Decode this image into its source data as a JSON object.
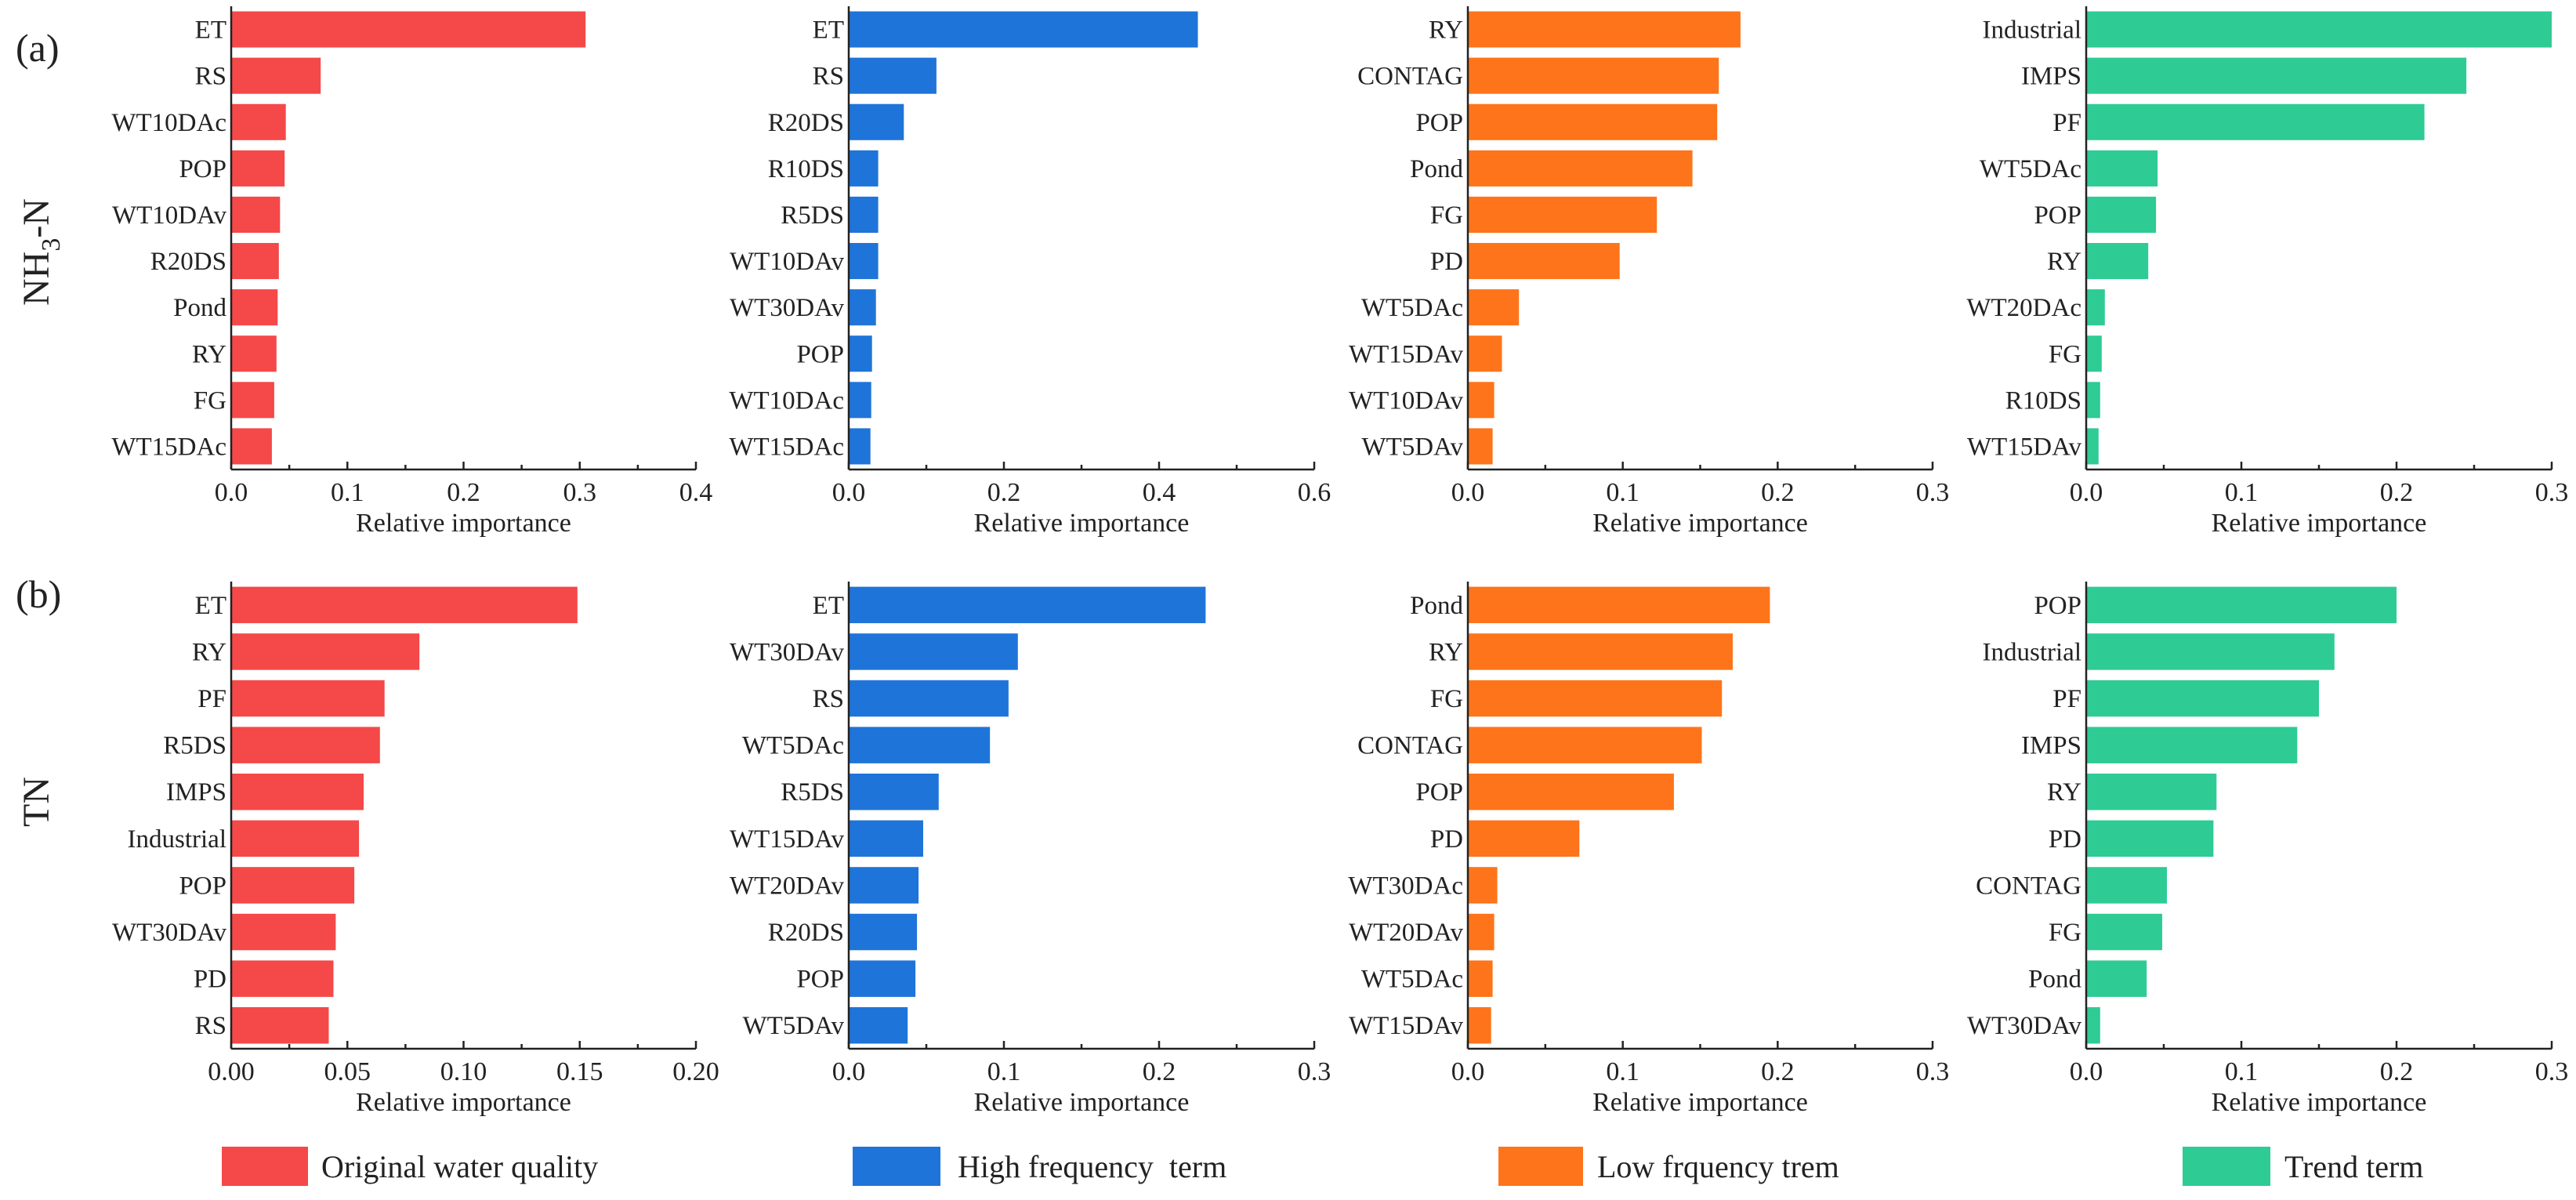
{
  "row_labels": [
    {
      "tag": "(a)",
      "label": "NH",
      "label_sub": "3",
      "label_tail": "-N"
    },
    {
      "tag": "(b)",
      "label": "TN",
      "label_sub": "",
      "label_tail": ""
    }
  ],
  "colors": {
    "original": "#f54848",
    "high": "#1f74d9",
    "low": "#fe741a",
    "trend": "#2fcb95"
  },
  "legend": [
    {
      "key": "original",
      "label": "Original water quality"
    },
    {
      "key": "high",
      "label": "High frequency  term"
    },
    {
      "key": "low",
      "label": "Low frquency trem"
    },
    {
      "key": "trend",
      "label": "Trend term"
    }
  ],
  "chart_data": [
    {
      "type": "bar",
      "orientation": "horizontal",
      "row": 0,
      "col": 0,
      "color_key": "original",
      "categories": [
        "ET",
        "RS",
        "WT10DAc",
        "POP",
        "WT10DAv",
        "R20DS",
        "Pond",
        "RY",
        "FG",
        "WT15DAc"
      ],
      "values": [
        0.305,
        0.077,
        0.047,
        0.046,
        0.042,
        0.041,
        0.04,
        0.039,
        0.037,
        0.035
      ],
      "xlim": [
        0,
        0.4
      ],
      "ticks": [
        0.0,
        0.1,
        0.2,
        0.3,
        0.4
      ],
      "tick_labels": [
        "0.0",
        "0.1",
        "0.2",
        "0.3",
        "0.4"
      ],
      "xlabel": "Relative importance"
    },
    {
      "type": "bar",
      "orientation": "horizontal",
      "row": 0,
      "col": 1,
      "color_key": "high",
      "categories": [
        "ET",
        "RS",
        "R20DS",
        "R10DS",
        "R5DS",
        "WT10DAv",
        "WT30DAv",
        "POP",
        "WT10DAc",
        "WT15DAc"
      ],
      "values": [
        0.45,
        0.113,
        0.071,
        0.038,
        0.038,
        0.038,
        0.035,
        0.03,
        0.029,
        0.028
      ],
      "xlim": [
        0,
        0.6
      ],
      "ticks": [
        0.0,
        0.2,
        0.4,
        0.6
      ],
      "tick_labels": [
        "0.0",
        "0.2",
        "0.4",
        "0.6"
      ],
      "xlabel": "Relative importance"
    },
    {
      "type": "bar",
      "orientation": "horizontal",
      "row": 0,
      "col": 2,
      "color_key": "low",
      "categories": [
        "RY",
        "CONTAG",
        "POP",
        "Pond",
        "FG",
        "PD",
        "WT5DAc",
        "WT15DAv",
        "WT10DAv",
        "WT5DAv"
      ],
      "values": [
        0.176,
        0.162,
        0.161,
        0.145,
        0.122,
        0.098,
        0.033,
        0.022,
        0.017,
        0.016
      ],
      "xlim": [
        0,
        0.3
      ],
      "ticks": [
        0.0,
        0.1,
        0.2,
        0.3
      ],
      "tick_labels": [
        "0.0",
        "0.1",
        "0.2",
        "0.3"
      ],
      "xlabel": "Relative importance"
    },
    {
      "type": "bar",
      "orientation": "horizontal",
      "row": 0,
      "col": 3,
      "color_key": "trend",
      "categories": [
        "Industrial",
        "IMPS",
        "PF",
        "WT5DAc",
        "POP",
        "RY",
        "WT20DAc",
        "FG",
        "R10DS",
        "WT15DAv"
      ],
      "values": [
        0.3,
        0.245,
        0.218,
        0.046,
        0.045,
        0.04,
        0.012,
        0.01,
        0.009,
        0.008
      ],
      "xlim": [
        0,
        0.3
      ],
      "ticks": [
        0.0,
        0.1,
        0.2,
        0.3
      ],
      "tick_labels": [
        "0.0",
        "0.1",
        "0.2",
        "0.3"
      ],
      "xlabel": "Relative importance"
    },
    {
      "type": "bar",
      "orientation": "horizontal",
      "row": 1,
      "col": 0,
      "color_key": "original",
      "categories": [
        "ET",
        "RY",
        "PF",
        "R5DS",
        "IMPS",
        "Industrial",
        "POP",
        "WT30DAv",
        "PD",
        "RS"
      ],
      "values": [
        0.149,
        0.081,
        0.066,
        0.064,
        0.057,
        0.055,
        0.053,
        0.045,
        0.044,
        0.042
      ],
      "xlim": [
        0,
        0.2
      ],
      "ticks": [
        0.0,
        0.05,
        0.1,
        0.15,
        0.2
      ],
      "tick_labels": [
        "0.00",
        "0.05",
        "0.10",
        "0.15",
        "0.20"
      ],
      "xlabel": "Relative importance"
    },
    {
      "type": "bar",
      "orientation": "horizontal",
      "row": 1,
      "col": 1,
      "color_key": "high",
      "categories": [
        "ET",
        "WT30DAv",
        "RS",
        "WT5DAc",
        "R5DS",
        "WT15DAv",
        "WT20DAv",
        "R20DS",
        "POP",
        "WT5DAv"
      ],
      "values": [
        0.23,
        0.109,
        0.103,
        0.091,
        0.058,
        0.048,
        0.045,
        0.044,
        0.043,
        0.038
      ],
      "xlim": [
        0,
        0.3
      ],
      "ticks": [
        0.0,
        0.1,
        0.2,
        0.3
      ],
      "tick_labels": [
        "0.0",
        "0.1",
        "0.2",
        "0.3"
      ],
      "xlabel": "Relative importance"
    },
    {
      "type": "bar",
      "orientation": "horizontal",
      "row": 1,
      "col": 2,
      "color_key": "low",
      "categories": [
        "Pond",
        "RY",
        "FG",
        "CONTAG",
        "POP",
        "PD",
        "WT30DAc",
        "WT20DAv",
        "WT5DAc",
        "WT15DAv"
      ],
      "values": [
        0.195,
        0.171,
        0.164,
        0.151,
        0.133,
        0.072,
        0.019,
        0.017,
        0.016,
        0.015
      ],
      "xlim": [
        0,
        0.3
      ],
      "ticks": [
        0.0,
        0.1,
        0.2,
        0.3
      ],
      "tick_labels": [
        "0.0",
        "0.1",
        "0.2",
        "0.3"
      ],
      "xlabel": "Relative importance"
    },
    {
      "type": "bar",
      "orientation": "horizontal",
      "row": 1,
      "col": 3,
      "color_key": "trend",
      "categories": [
        "POP",
        "Industrial",
        "PF",
        "IMPS",
        "RY",
        "PD",
        "CONTAG",
        "FG",
        "Pond",
        "WT30DAv"
      ],
      "values": [
        0.2,
        0.16,
        0.15,
        0.136,
        0.084,
        0.082,
        0.052,
        0.049,
        0.039,
        0.009
      ],
      "xlim": [
        0,
        0.3
      ],
      "ticks": [
        0.0,
        0.1,
        0.2,
        0.3
      ],
      "tick_labels": [
        "0.0",
        "0.1",
        "0.2",
        "0.3"
      ],
      "xlabel": "Relative importance"
    }
  ]
}
